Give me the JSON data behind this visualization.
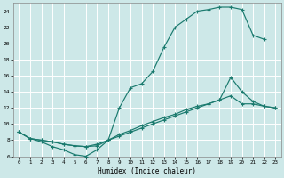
{
  "bg_color": "#cde8e8",
  "grid_color": "#ffffff",
  "line_color": "#1a7a6e",
  "xlabel": "Humidex (Indice chaleur)",
  "xlim": [
    -0.5,
    23.5
  ],
  "ylim": [
    6,
    25
  ],
  "yticks": [
    6,
    8,
    10,
    12,
    14,
    16,
    18,
    20,
    22,
    24
  ],
  "xticks": [
    0,
    1,
    2,
    3,
    4,
    5,
    6,
    7,
    8,
    9,
    10,
    11,
    12,
    13,
    14,
    15,
    16,
    17,
    18,
    19,
    20,
    21,
    22,
    23
  ],
  "curve1_x": [
    0,
    1,
    2,
    3,
    4,
    5,
    6,
    7,
    8,
    9,
    10,
    11,
    12,
    13,
    14,
    15,
    16,
    17,
    18,
    19,
    20,
    21,
    22,
    23
  ],
  "curve1_y": [
    9.0,
    8.2,
    7.8,
    7.2,
    6.8,
    6.2,
    6.0,
    6.8,
    8.0,
    12.0,
    14.5,
    15.0,
    16.5,
    19.5,
    22.0,
    23.0,
    24.0,
    24.2,
    24.5,
    24.5,
    24.2,
    21.0,
    20.5,
    null
  ],
  "curve2_x": [
    0,
    1,
    2,
    3,
    4,
    5,
    6,
    7,
    8,
    9,
    10,
    11,
    12,
    13,
    14,
    15,
    16,
    17,
    18,
    19,
    20,
    21,
    22,
    23
  ],
  "curve2_y": [
    9.0,
    8.2,
    8.0,
    7.8,
    7.5,
    7.3,
    7.2,
    7.5,
    8.0,
    8.5,
    9.0,
    9.5,
    10.0,
    10.5,
    11.0,
    11.5,
    12.0,
    12.5,
    13.0,
    13.5,
    12.5,
    12.5,
    12.2,
    12.0
  ],
  "curve3_x": [
    0,
    1,
    2,
    3,
    4,
    5,
    6,
    7,
    8,
    9,
    10,
    11,
    12,
    13,
    14,
    15,
    16,
    17,
    18,
    19,
    20,
    21,
    22,
    23
  ],
  "curve3_y": [
    9.0,
    8.2,
    8.0,
    7.8,
    7.5,
    7.3,
    7.2,
    7.3,
    8.0,
    8.7,
    9.2,
    9.8,
    10.3,
    10.8,
    11.2,
    11.8,
    12.2,
    12.5,
    13.0,
    15.8,
    14.0,
    12.8,
    12.2,
    12.0
  ]
}
